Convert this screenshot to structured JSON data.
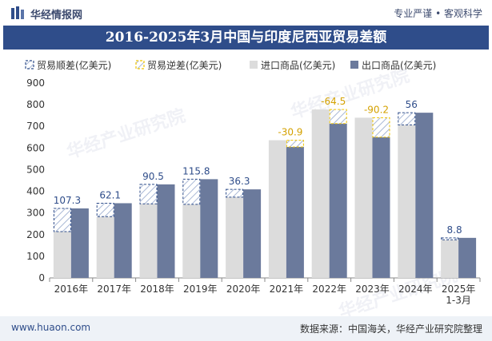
{
  "header": {
    "brand": "华经情报网",
    "tags": "专业严谨 • 客观科学"
  },
  "title": "2016-2025年3月中国与印度尼西亚贸易差额",
  "footer": {
    "site": "www.huaon.com",
    "source": "数据来源：中国海关，华经产业研究院整理"
  },
  "watermark": "华经产业研究院",
  "colors": {
    "import": "#dcdcdc",
    "export": "#6b7a9c",
    "surplus": "#2f4d8a",
    "deficit": "#f0c400",
    "title_bg": "#2f4d8a"
  },
  "chart_data": {
    "type": "bar",
    "categories": [
      "2016年",
      "2017年",
      "2018年",
      "2019年",
      "2020年",
      "2021年",
      "2022年",
      "2023年",
      "2024年",
      "2025年\n1-3月"
    ],
    "legend": [
      "贸易顺差(亿美元)",
      "贸易逆差(亿美元)",
      "进口商品(亿美元)",
      "出口商品(亿美元)"
    ],
    "series": [
      {
        "name": "进口商品(亿美元)",
        "values": [
          214,
          283,
          342,
          340,
          373,
          636,
          778,
          740,
          707,
          176
        ]
      },
      {
        "name": "出口商品(亿美元)",
        "values": [
          321,
          345,
          432,
          456,
          409,
          605,
          713,
          650,
          763,
          185
        ]
      }
    ],
    "balance": [
      107.3,
      62.1,
      90.5,
      115.8,
      36.3,
      -30.9,
      -64.5,
      -90.2,
      56,
      8.8
    ],
    "balance_labels": [
      "107.3",
      "62.1",
      "90.5",
      "115.8",
      "36.3",
      "-30.9",
      "-64.5",
      "-90.2",
      "56",
      "8.8"
    ],
    "yticks": [
      "0",
      "100",
      "200",
      "300",
      "400",
      "500",
      "600",
      "700",
      "800",
      "900"
    ],
    "ylim": [
      0,
      900
    ],
    "grid": false,
    "legend_position": "top"
  }
}
